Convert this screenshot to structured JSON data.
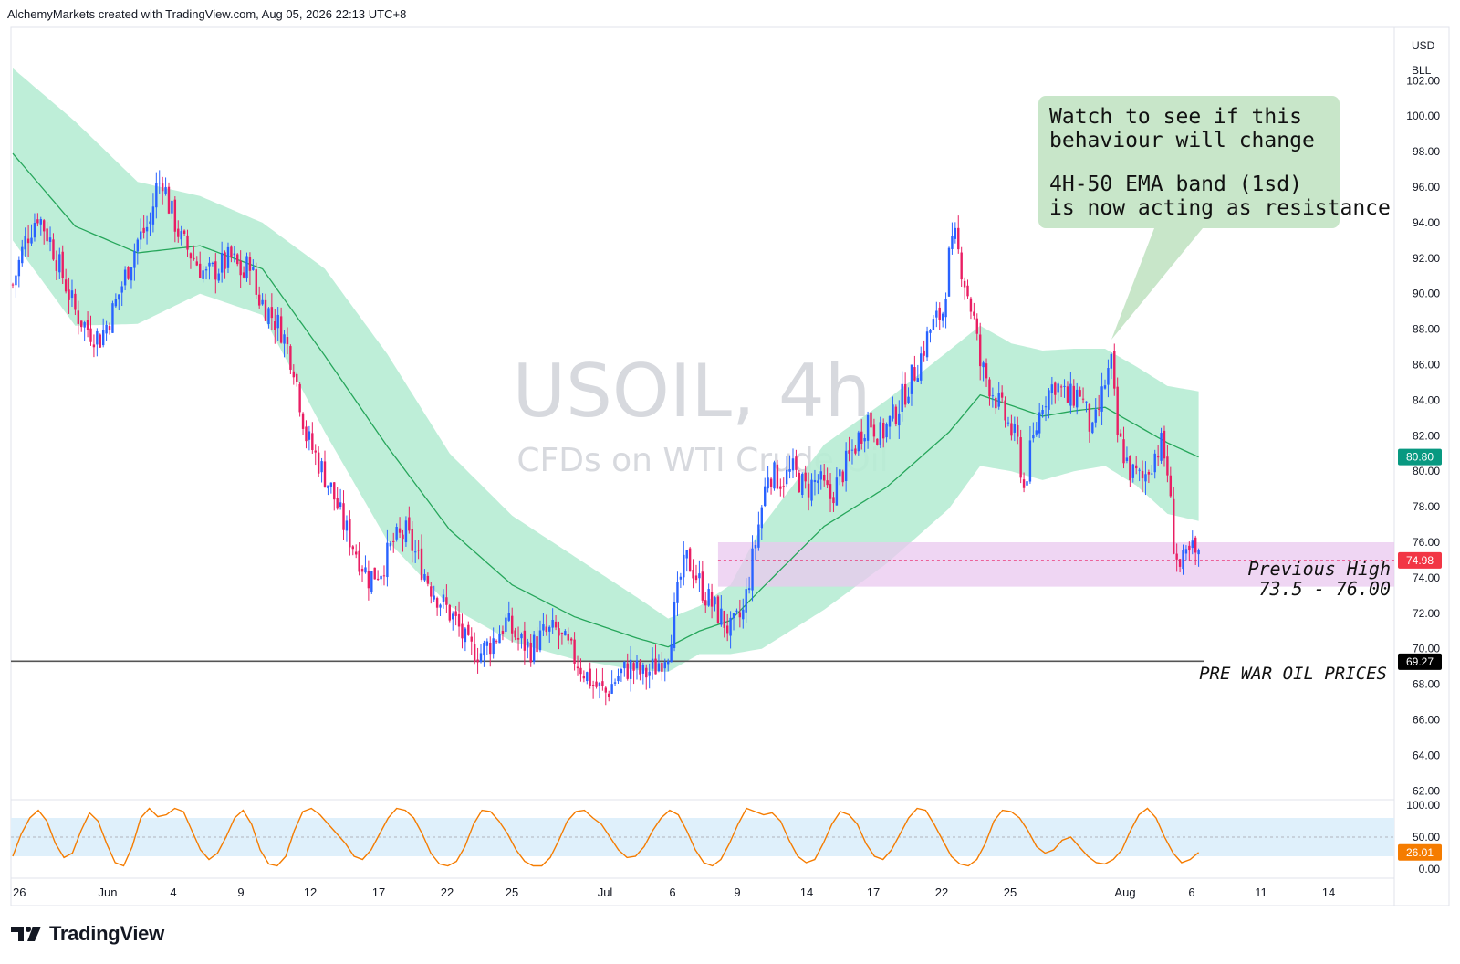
{
  "header": {
    "attribution": "AlchemyMarkets created with TradingView.com, Aug 05, 2026 22:13 UTC+8"
  },
  "watermark": {
    "symbol": "USOIL, 4h",
    "description": "CFDs on WTI Crude Oil"
  },
  "scale_labels": {
    "currency": "USD",
    "unit": "BLL"
  },
  "annotation": {
    "line1": "Watch to see if this",
    "line2": "behaviour will change",
    "line3": "4H-50 EMA band (1sd)",
    "line4": "is now acting as resistance"
  },
  "zones": {
    "previous_high_label": "Previous High",
    "previous_high_range": "73.5 - 76.00",
    "pre_war_label": "PRE WAR OIL PRICES"
  },
  "colors": {
    "bull": "#2962ff",
    "bear": "#e91e63",
    "ema": "#26a65b",
    "band": "#b7ecd4",
    "zone": "#e9c8ef",
    "oscillator": "#f57c00",
    "osc_band": "#dff0fb"
  },
  "logo": {
    "text": "TradingView"
  },
  "chart_data": [
    {
      "type": "candlestick",
      "yaxis": {
        "ticks": [
          "62.00",
          "64.00",
          "66.00",
          "68.00",
          "70.00",
          "72.00",
          "74.00",
          "76.00",
          "78.00",
          "80.00",
          "82.00",
          "84.00",
          "86.00",
          "88.00",
          "90.00",
          "92.00",
          "94.00",
          "96.00",
          "98.00",
          "100.00",
          "102.00"
        ],
        "ylim": [
          61.5,
          105
        ]
      },
      "xaxis": {
        "ticks": [
          "26",
          "Jun",
          "4",
          "9",
          "12",
          "17",
          "22",
          "25",
          "Jul",
          "6",
          "9",
          "14",
          "17",
          "22",
          "25",
          "Aug",
          "6",
          "11",
          "14"
        ]
      },
      "price_badges": [
        {
          "label": "80.80",
          "value": 80.8,
          "color": "#089981"
        },
        {
          "label": "74.98",
          "value": 74.98,
          "color": "#f23645"
        },
        {
          "label": "69.27",
          "value": 69.27,
          "color": "#000000"
        }
      ],
      "horizontal_line": {
        "value": 69.3
      },
      "zone": {
        "low": 73.5,
        "high": 76.0
      },
      "close_path": [
        [
          0,
          90.5
        ],
        [
          4,
          93
        ],
        [
          8,
          94.5
        ],
        [
          12,
          93
        ],
        [
          16,
          91
        ],
        [
          20,
          89
        ],
        [
          24,
          88
        ],
        [
          28,
          87.5
        ],
        [
          32,
          89
        ],
        [
          36,
          91
        ],
        [
          40,
          93
        ],
        [
          44,
          94
        ],
        [
          46,
          96
        ],
        [
          48,
          96.5
        ],
        [
          50,
          95
        ],
        [
          54,
          93
        ],
        [
          58,
          92
        ],
        [
          62,
          91
        ],
        [
          66,
          91.5
        ],
        [
          70,
          92
        ],
        [
          74,
          91
        ],
        [
          76,
          92
        ],
        [
          78,
          90
        ],
        [
          82,
          89
        ],
        [
          86,
          88
        ],
        [
          90,
          86
        ],
        [
          92,
          84
        ],
        [
          94,
          82
        ],
        [
          98,
          80.5
        ],
        [
          102,
          79
        ],
        [
          106,
          77
        ],
        [
          110,
          75.5
        ],
        [
          114,
          74
        ],
        [
          118,
          74.5
        ],
        [
          122,
          76
        ],
        [
          126,
          76.5
        ],
        [
          130,
          75
        ],
        [
          134,
          73.5
        ],
        [
          138,
          72.5
        ],
        [
          142,
          71.5
        ],
        [
          146,
          70
        ],
        [
          150,
          69.8
        ],
        [
          154,
          70.5
        ],
        [
          158,
          71.5
        ],
        [
          162,
          70.5
        ],
        [
          166,
          70
        ],
        [
          170,
          70.8
        ],
        [
          174,
          71
        ],
        [
          178,
          70
        ],
        [
          182,
          69
        ],
        [
          186,
          68
        ],
        [
          190,
          67.5
        ],
        [
          194,
          68.5
        ],
        [
          198,
          69
        ],
        [
          202,
          68.5
        ],
        [
          206,
          69
        ],
        [
          210,
          70
        ],
        [
          212,
          72
        ],
        [
          214,
          74
        ],
        [
          216,
          75
        ],
        [
          218,
          74.5
        ],
        [
          222,
          73
        ],
        [
          226,
          72
        ],
        [
          230,
          71
        ],
        [
          234,
          72
        ],
        [
          236,
          74
        ],
        [
          238,
          76
        ],
        [
          240,
          78
        ],
        [
          242,
          80
        ],
        [
          246,
          79.5
        ],
        [
          250,
          80
        ],
        [
          254,
          79
        ],
        [
          258,
          79.5
        ],
        [
          262,
          78.5
        ],
        [
          266,
          80
        ],
        [
          270,
          81.5
        ],
        [
          274,
          83
        ],
        [
          278,
          82
        ],
        [
          282,
          83
        ],
        [
          286,
          84.5
        ],
        [
          290,
          86
        ],
        [
          294,
          88
        ],
        [
          298,
          89
        ],
        [
          300,
          92
        ],
        [
          302,
          93
        ],
        [
          304,
          91.5
        ],
        [
          306,
          90
        ],
        [
          308,
          88.5
        ],
        [
          310,
          86
        ],
        [
          314,
          84.5
        ],
        [
          318,
          83
        ],
        [
          322,
          81.5
        ],
        [
          324,
          79
        ],
        [
          326,
          81
        ],
        [
          330,
          84
        ],
        [
          334,
          85
        ],
        [
          338,
          84
        ],
        [
          342,
          84.5
        ],
        [
          346,
          82
        ],
        [
          350,
          85
        ],
        [
          352,
          86
        ],
        [
          354,
          82
        ],
        [
          358,
          80
        ],
        [
          362,
          79.5
        ],
        [
          366,
          81
        ],
        [
          368,
          81.5
        ],
        [
          370,
          80
        ],
        [
          372,
          76
        ],
        [
          374,
          74.5
        ],
        [
          378,
          75.5
        ],
        [
          380,
          75
        ]
      ],
      "ema50": [
        [
          0,
          97.9
        ],
        [
          20,
          93.8
        ],
        [
          40,
          92.3
        ],
        [
          60,
          92.7
        ],
        [
          80,
          91.4
        ],
        [
          100,
          86.5
        ],
        [
          120,
          81.4
        ],
        [
          140,
          76.7
        ],
        [
          160,
          73.6
        ],
        [
          180,
          71.8
        ],
        [
          200,
          70.6
        ],
        [
          210,
          70.1
        ],
        [
          220,
          71.0
        ],
        [
          230,
          71.6
        ],
        [
          240,
          73.4
        ],
        [
          260,
          76.9
        ],
        [
          280,
          79.1
        ],
        [
          300,
          82.2
        ],
        [
          310,
          84.3
        ],
        [
          320,
          83.7
        ],
        [
          330,
          83.1
        ],
        [
          340,
          83.4
        ],
        [
          350,
          83.6
        ],
        [
          360,
          82.6
        ],
        [
          370,
          81.6
        ],
        [
          380,
          80.8
        ]
      ],
      "band_upper": [
        [
          0,
          102.7
        ],
        [
          20,
          99.7
        ],
        [
          40,
          96.3
        ],
        [
          60,
          95.5
        ],
        [
          80,
          94.0
        ],
        [
          100,
          91.4
        ],
        [
          120,
          86.6
        ],
        [
          140,
          81.0
        ],
        [
          160,
          77.5
        ],
        [
          180,
          75.2
        ],
        [
          200,
          72.9
        ],
        [
          210,
          71.7
        ],
        [
          220,
          72.4
        ],
        [
          230,
          73.6
        ],
        [
          240,
          76.9
        ],
        [
          260,
          81.5
        ],
        [
          280,
          84.0
        ],
        [
          300,
          86.8
        ],
        [
          310,
          88.2
        ],
        [
          320,
          87.2
        ],
        [
          330,
          86.8
        ],
        [
          340,
          86.9
        ],
        [
          350,
          86.9
        ],
        [
          360,
          85.9
        ],
        [
          370,
          84.8
        ],
        [
          380,
          84.5
        ]
      ],
      "band_lower": [
        [
          0,
          93.0
        ],
        [
          20,
          88.2
        ],
        [
          40,
          88.3
        ],
        [
          60,
          90.0
        ],
        [
          80,
          88.8
        ],
        [
          100,
          82.2
        ],
        [
          120,
          76.1
        ],
        [
          140,
          72.4
        ],
        [
          160,
          70.4
        ],
        [
          180,
          69.4
        ],
        [
          200,
          68.8
        ],
        [
          210,
          68.7
        ],
        [
          220,
          69.7
        ],
        [
          230,
          69.7
        ],
        [
          240,
          70.0
        ],
        [
          260,
          72.2
        ],
        [
          280,
          74.8
        ],
        [
          300,
          77.9
        ],
        [
          310,
          80.3
        ],
        [
          320,
          80.0
        ],
        [
          330,
          79.5
        ],
        [
          340,
          80.0
        ],
        [
          350,
          80.3
        ],
        [
          360,
          79.2
        ],
        [
          370,
          77.6
        ],
        [
          380,
          77.2
        ]
      ]
    },
    {
      "type": "line",
      "yaxis": {
        "ticks": [
          "0.00",
          "50.00",
          "100.00"
        ],
        "ylim": [
          0,
          100
        ]
      },
      "band": {
        "low": 20,
        "high": 80
      },
      "current": {
        "label": "26.01",
        "value": 26.01
      },
      "series": [
        {
          "values": [
            20,
            55,
            80,
            92,
            75,
            40,
            18,
            25,
            60,
            88,
            75,
            40,
            10,
            5,
            35,
            80,
            95,
            82,
            85,
            95,
            90,
            60,
            30,
            15,
            25,
            50,
            80,
            92,
            70,
            30,
            8,
            5,
            20,
            60,
            90,
            95,
            85,
            70,
            55,
            40,
            20,
            15,
            30,
            55,
            80,
            95,
            92,
            80,
            55,
            25,
            8,
            5,
            12,
            35,
            70,
            92,
            90,
            75,
            55,
            30,
            12,
            5,
            5,
            18,
            45,
            75,
            90,
            92,
            80,
            70,
            50,
            30,
            18,
            20,
            35,
            60,
            80,
            92,
            85,
            60,
            30,
            10,
            5,
            15,
            40,
            70,
            95,
            90,
            85,
            88,
            75,
            45,
            20,
            10,
            15,
            40,
            70,
            90,
            85,
            70,
            40,
            20,
            15,
            30,
            55,
            80,
            95,
            92,
            70,
            45,
            20,
            8,
            5,
            15,
            40,
            75,
            92,
            90,
            80,
            60,
            35,
            25,
            30,
            45,
            50,
            35,
            20,
            10,
            8,
            15,
            30,
            60,
            85,
            95,
            80,
            50,
            25,
            10,
            15,
            26
          ]
        }
      ]
    }
  ]
}
